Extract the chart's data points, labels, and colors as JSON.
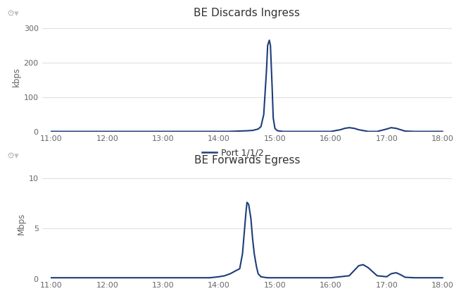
{
  "chart1": {
    "title": "BE Discards Ingress",
    "ylabel": "kbps",
    "ylim": [
      0,
      320
    ],
    "yticks": [
      0,
      100,
      200,
      300
    ],
    "x_hours": [
      11,
      11.17,
      11.33,
      11.5,
      11.67,
      11.83,
      12,
      12.17,
      12.33,
      12.5,
      12.67,
      12.83,
      13,
      13.17,
      13.33,
      13.5,
      13.67,
      13.83,
      14,
      14.17,
      14.33,
      14.5,
      14.6,
      14.7,
      14.75,
      14.8,
      14.85,
      14.87,
      14.9,
      14.92,
      14.95,
      14.97,
      15.0,
      15.03,
      15.05,
      15.1,
      15.15,
      15.2,
      15.33,
      15.5,
      15.67,
      15.83,
      16,
      16.17,
      16.25,
      16.33,
      16.42,
      16.5,
      16.67,
      16.83,
      17.0,
      17.08,
      17.17,
      17.25,
      17.33,
      17.5,
      17.67,
      17.83,
      18
    ],
    "y_vals": [
      1,
      1,
      1,
      1,
      1,
      1,
      1,
      1,
      1,
      1,
      1,
      1,
      1,
      1,
      1,
      1,
      1,
      1,
      1,
      1,
      2,
      3,
      4,
      8,
      15,
      50,
      180,
      250,
      265,
      250,
      130,
      40,
      10,
      5,
      3,
      2,
      1,
      1,
      1,
      1,
      1,
      1,
      1,
      6,
      10,
      12,
      10,
      6,
      1,
      1,
      8,
      12,
      10,
      6,
      2,
      1,
      1,
      1,
      1
    ],
    "line_color": "#1f3d7a",
    "line_width": 1.5
  },
  "chart2": {
    "title": "BE Forwards Egress",
    "ylabel": "Mbps",
    "ylim": [
      0,
      11
    ],
    "yticks": [
      0,
      5,
      10
    ],
    "x_hours": [
      11,
      11.17,
      11.33,
      11.5,
      11.67,
      11.83,
      12,
      12.17,
      12.33,
      12.5,
      12.67,
      12.83,
      13,
      13.17,
      13.33,
      13.5,
      13.67,
      13.83,
      14,
      14.1,
      14.2,
      14.3,
      14.37,
      14.42,
      14.45,
      14.48,
      14.5,
      14.53,
      14.57,
      14.6,
      14.63,
      14.67,
      14.7,
      14.75,
      14.8,
      14.87,
      14.93,
      15.0,
      15.1,
      15.2,
      15.33,
      15.5,
      15.67,
      15.83,
      16,
      16.17,
      16.33,
      16.5,
      16.58,
      16.67,
      16.75,
      16.83,
      17.0,
      17.08,
      17.17,
      17.25,
      17.33,
      17.5,
      17.67,
      17.83,
      18
    ],
    "y_vals": [
      0.1,
      0.1,
      0.1,
      0.1,
      0.1,
      0.1,
      0.1,
      0.1,
      0.1,
      0.1,
      0.1,
      0.1,
      0.1,
      0.1,
      0.1,
      0.1,
      0.1,
      0.1,
      0.2,
      0.3,
      0.5,
      0.8,
      1.0,
      2.5,
      4.5,
      6.5,
      7.6,
      7.4,
      6.0,
      4.0,
      2.5,
      1.2,
      0.5,
      0.2,
      0.15,
      0.1,
      0.1,
      0.1,
      0.1,
      0.1,
      0.1,
      0.1,
      0.1,
      0.1,
      0.1,
      0.2,
      0.3,
      1.3,
      1.4,
      1.1,
      0.7,
      0.3,
      0.2,
      0.5,
      0.6,
      0.4,
      0.15,
      0.1,
      0.1,
      0.1,
      0.1
    ],
    "line_color": "#1f3d7a",
    "line_width": 1.5
  },
  "legend_label": "Port 1/1/2",
  "legend_color": "#1f3d7a",
  "x_ticks": [
    11,
    12,
    13,
    14,
    15,
    16,
    17,
    18
  ],
  "x_tick_labels": [
    "11:00",
    "12:00",
    "13:00",
    "14:00",
    "15:00",
    "16:00",
    "17:00",
    "18:00"
  ],
  "xlim": [
    10.83,
    18.17
  ],
  "background_color": "#ffffff",
  "grid_color": "#e0e0e0",
  "tick_color": "#666666",
  "title_fontsize": 11,
  "label_fontsize": 8.5,
  "tick_fontsize": 8,
  "icon_color": "#c0c0c0"
}
